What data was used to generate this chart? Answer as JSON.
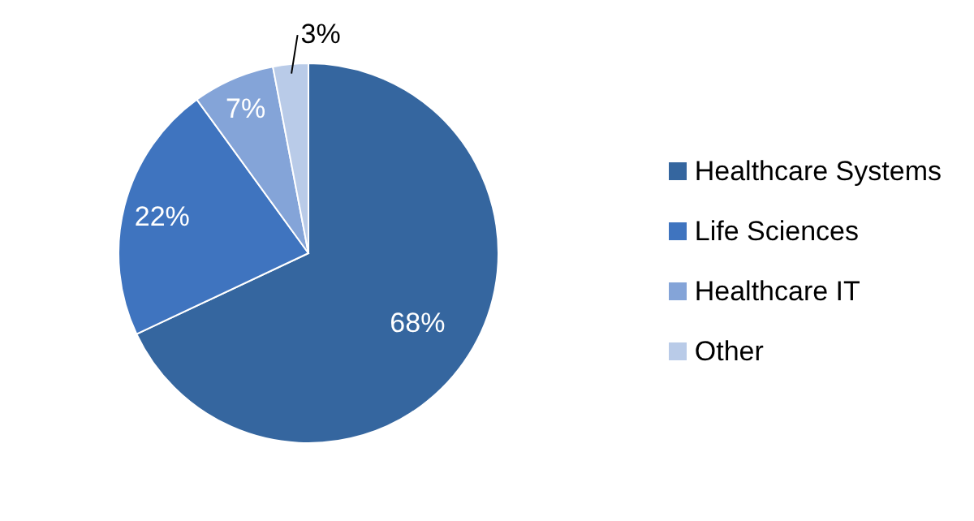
{
  "chart_data": {
    "type": "pie",
    "categories": [
      "Healthcare Systems",
      "Life Sciences",
      "Healthcare IT",
      "Other"
    ],
    "values": [
      68,
      22,
      7,
      3
    ],
    "colors": [
      "#35669f",
      "#3f74bf",
      "#84a4d8",
      "#b9cbe8"
    ],
    "value_labels": [
      "68%",
      "22%",
      "7%",
      "3%"
    ],
    "legend": "right"
  }
}
